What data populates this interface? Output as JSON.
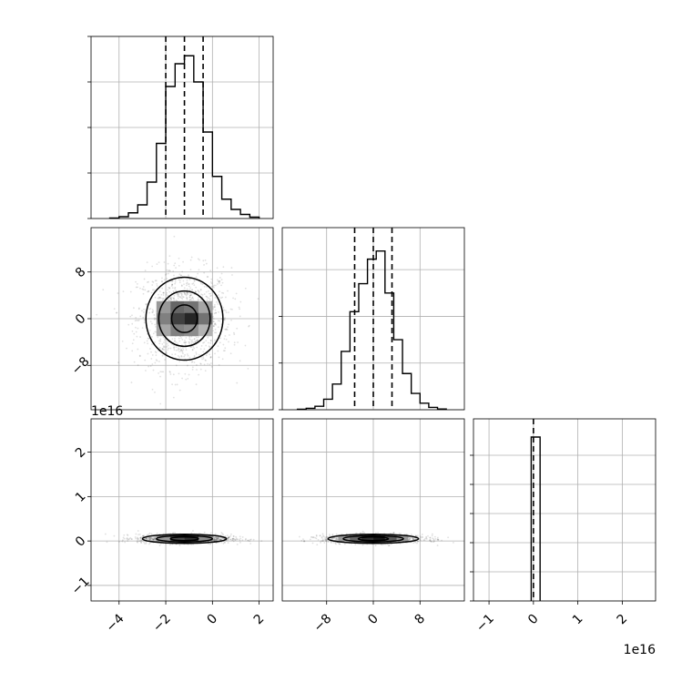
{
  "chart_data": {
    "type": "corner",
    "offsets": {
      "x_bottom": "1e16",
      "y_left_row3": "1e16"
    },
    "grid": true,
    "params": [
      {
        "name": "",
        "range": [
          -5.2,
          2.6
        ],
        "hist_edges": [
          -4.4,
          -4.0,
          -3.6,
          -3.2,
          -2.8,
          -2.4,
          -2.0,
          -1.6,
          -1.2,
          -0.8,
          -0.4,
          0.0,
          0.4,
          0.8,
          1.2,
          1.6,
          2.0
        ],
        "hist_counts": [
          2,
          8,
          25,
          60,
          160,
          330,
          580,
          680,
          715,
          600,
          380,
          185,
          85,
          40,
          18,
          6
        ],
        "hist_ylim": [
          0,
          800
        ],
        "quantiles": [
          -2.0,
          -1.2,
          -0.4
        ]
      },
      {
        "name": "",
        "range": [
          -15.6,
          15.6
        ],
        "hist_edges": [
          -13.0,
          -11.5,
          -10.0,
          -8.5,
          -7.0,
          -5.5,
          -4.0,
          -2.5,
          -1.0,
          0.5,
          2.0,
          3.5,
          5.0,
          6.5,
          8.0,
          9.5,
          11.0,
          12.5
        ],
        "hist_counts": [
          2,
          6,
          15,
          45,
          110,
          250,
          420,
          540,
          645,
          680,
          500,
          300,
          155,
          70,
          28,
          10,
          3
        ],
        "hist_ylim": [
          0,
          780
        ],
        "quantiles": [
          -3.2,
          0.0,
          3.2
        ]
      },
      {
        "name": "",
        "range": [
          -1.35,
          2.75
        ],
        "hist_edges": [
          -0.05,
          0.05,
          0.15
        ],
        "hist_counts": [
          4500,
          4500
        ],
        "hist_ylim": [
          0,
          5000
        ],
        "quantiles": [
          0.0
        ]
      }
    ],
    "x_ticks": [
      {
        "values": [
          -4,
          -2,
          0,
          2
        ],
        "labels": [
          "−4",
          "−2",
          "0",
          "2"
        ]
      },
      {
        "values": [
          -8,
          0,
          8
        ],
        "labels": [
          "−8",
          "0",
          "8"
        ]
      },
      {
        "values": [
          -1,
          0,
          1,
          2
        ],
        "labels": [
          "−1",
          "0",
          "1",
          "2"
        ]
      }
    ],
    "y_ticks": [
      {
        "values": [],
        "labels": []
      },
      {
        "values": [
          -8,
          0,
          8
        ],
        "labels": [
          "−8",
          "0",
          "8"
        ]
      },
      {
        "values": [
          -1,
          0,
          1,
          2
        ],
        "labels": [
          "−1",
          "0",
          "1",
          "2"
        ]
      }
    ],
    "hist_ticks": [
      [
        0,
        200,
        400,
        600,
        800
      ],
      [
        0,
        200,
        400,
        600
      ],
      [
        0,
        800,
        1600,
        2400,
        3200,
        4000
      ]
    ],
    "pairs": [
      {
        "row": 1,
        "col": 0,
        "center": [
          -1.2,
          0.0
        ],
        "sigma": [
          1.0,
          4.3
        ],
        "contour_levels": [
          0.55,
          1.1,
          1.65
        ],
        "hist2d_cells": [
          {
            "x": -2.4,
            "y": -3.0,
            "w": 0.6,
            "h": 2.0,
            "shade": 0.65
          },
          {
            "x": -1.8,
            "y": -3.0,
            "w": 0.6,
            "h": 2.0,
            "shade": 0.5
          },
          {
            "x": -1.2,
            "y": -3.0,
            "w": 0.6,
            "h": 2.0,
            "shade": 0.55
          },
          {
            "x": -0.6,
            "y": -3.0,
            "w": 0.6,
            "h": 2.0,
            "shade": 0.7
          },
          {
            "x": -2.4,
            "y": -1.0,
            "w": 0.6,
            "h": 2.0,
            "shade": 0.5
          },
          {
            "x": -1.8,
            "y": -1.0,
            "w": 0.6,
            "h": 2.0,
            "shade": 0.25
          },
          {
            "x": -1.2,
            "y": -1.0,
            "w": 0.6,
            "h": 2.0,
            "shade": 0.15
          },
          {
            "x": -0.6,
            "y": -1.0,
            "w": 0.6,
            "h": 2.0,
            "shade": 0.45
          },
          {
            "x": -2.4,
            "y": 1.0,
            "w": 0.6,
            "h": 2.0,
            "shade": 0.6
          },
          {
            "x": -1.8,
            "y": 1.0,
            "w": 0.6,
            "h": 2.0,
            "shade": 0.4
          },
          {
            "x": -1.2,
            "y": 1.0,
            "w": 0.6,
            "h": 2.0,
            "shade": 0.45
          },
          {
            "x": -0.6,
            "y": 1.0,
            "w": 0.6,
            "h": 2.0,
            "shade": 0.65
          }
        ]
      },
      {
        "row": 2,
        "col": 0,
        "center": [
          -1.2,
          0.05
        ],
        "sigma": [
          1.0,
          0.05
        ],
        "contour_levels": [
          0.6,
          1.2,
          1.8
        ],
        "hist2d_cells": [
          {
            "x": -2.4,
            "y": 0.0,
            "w": 0.6,
            "h": 0.12,
            "shade": 0.6
          },
          {
            "x": -1.8,
            "y": 0.0,
            "w": 0.6,
            "h": 0.12,
            "shade": 0.3
          },
          {
            "x": -1.2,
            "y": 0.0,
            "w": 0.6,
            "h": 0.12,
            "shade": 0.2
          },
          {
            "x": -0.6,
            "y": 0.0,
            "w": 0.6,
            "h": 0.12,
            "shade": 0.55
          }
        ]
      },
      {
        "row": 2,
        "col": 1,
        "center": [
          0.0,
          0.05
        ],
        "sigma": [
          4.3,
          0.05
        ],
        "contour_levels": [
          0.6,
          1.2,
          1.8
        ],
        "hist2d_cells": [
          {
            "x": -6.0,
            "y": 0.0,
            "w": 2.0,
            "h": 0.12,
            "shade": 0.6
          },
          {
            "x": -4.0,
            "y": 0.0,
            "w": 2.0,
            "h": 0.12,
            "shade": 0.4
          },
          {
            "x": -2.0,
            "y": 0.0,
            "w": 2.0,
            "h": 0.12,
            "shade": 0.2
          },
          {
            "x": 0.0,
            "y": 0.0,
            "w": 2.0,
            "h": 0.12,
            "shade": 0.1
          },
          {
            "x": 2.0,
            "y": 0.0,
            "w": 2.0,
            "h": 0.12,
            "shade": 0.35
          },
          {
            "x": 4.0,
            "y": 0.0,
            "w": 2.0,
            "h": 0.12,
            "shade": 0.6
          }
        ]
      }
    ]
  }
}
